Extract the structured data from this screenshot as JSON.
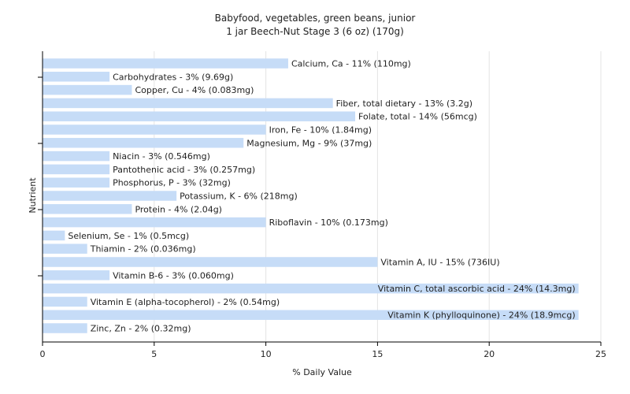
{
  "chart_data": {
    "type": "bar",
    "orientation": "horizontal",
    "title": "Babyfood, vegetables, green beans, junior",
    "subtitle": "1 jar Beech-Nut Stage 3 (6 oz) (170g)",
    "xlabel": "% Daily Value",
    "ylabel": "Nutrient",
    "xlim": [
      0,
      25
    ],
    "xticks": [
      0,
      5,
      10,
      15,
      20,
      25
    ],
    "grid": true,
    "bar_color": "#c6dcf7",
    "categories": [
      "Calcium, Ca",
      "Carbohydrates",
      "Copper, Cu",
      "Fiber, total dietary",
      "Folate, total",
      "Iron, Fe",
      "Magnesium, Mg",
      "Niacin",
      "Pantothenic acid",
      "Phosphorus, P",
      "Potassium, K",
      "Protein",
      "Riboflavin",
      "Selenium, Se",
      "Thiamin",
      "Vitamin A, IU",
      "Vitamin B-6",
      "Vitamin C, total ascorbic acid",
      "Vitamin E (alpha-tocopherol)",
      "Vitamin K (phylloquinone)",
      "Zinc, Zn"
    ],
    "values": [
      11,
      3,
      4,
      13,
      14,
      10,
      9,
      3,
      3,
      3,
      6,
      4,
      10,
      1,
      2,
      15,
      3,
      24,
      2,
      24,
      2
    ],
    "labels": [
      "Calcium, Ca - 11% (110mg)",
      "Carbohydrates - 3% (9.69g)",
      "Copper, Cu - 4% (0.083mg)",
      "Fiber, total dietary - 13% (3.2g)",
      "Folate, total - 14% (56mcg)",
      "Iron, Fe - 10% (1.84mg)",
      "Magnesium, Mg - 9% (37mg)",
      "Niacin - 3% (0.546mg)",
      "Pantothenic acid - 3% (0.257mg)",
      "Phosphorus, P - 3% (32mg)",
      "Potassium, K - 6% (218mg)",
      "Protein - 4% (2.04g)",
      "Riboflavin - 10% (0.173mg)",
      "Selenium, Se - 1% (0.5mcg)",
      "Thiamin - 2% (0.036mg)",
      "Vitamin A, IU - 15% (736IU)",
      "Vitamin B-6 - 3% (0.060mg)",
      "Vitamin C, total ascorbic acid - 24% (14.3mg)",
      "Vitamin E (alpha-tocopherol) - 2% (0.54mg)",
      "Vitamin K (phylloquinone) - 24% (18.9mcg)",
      "Zinc, Zn - 2% (0.32mg)"
    ]
  }
}
